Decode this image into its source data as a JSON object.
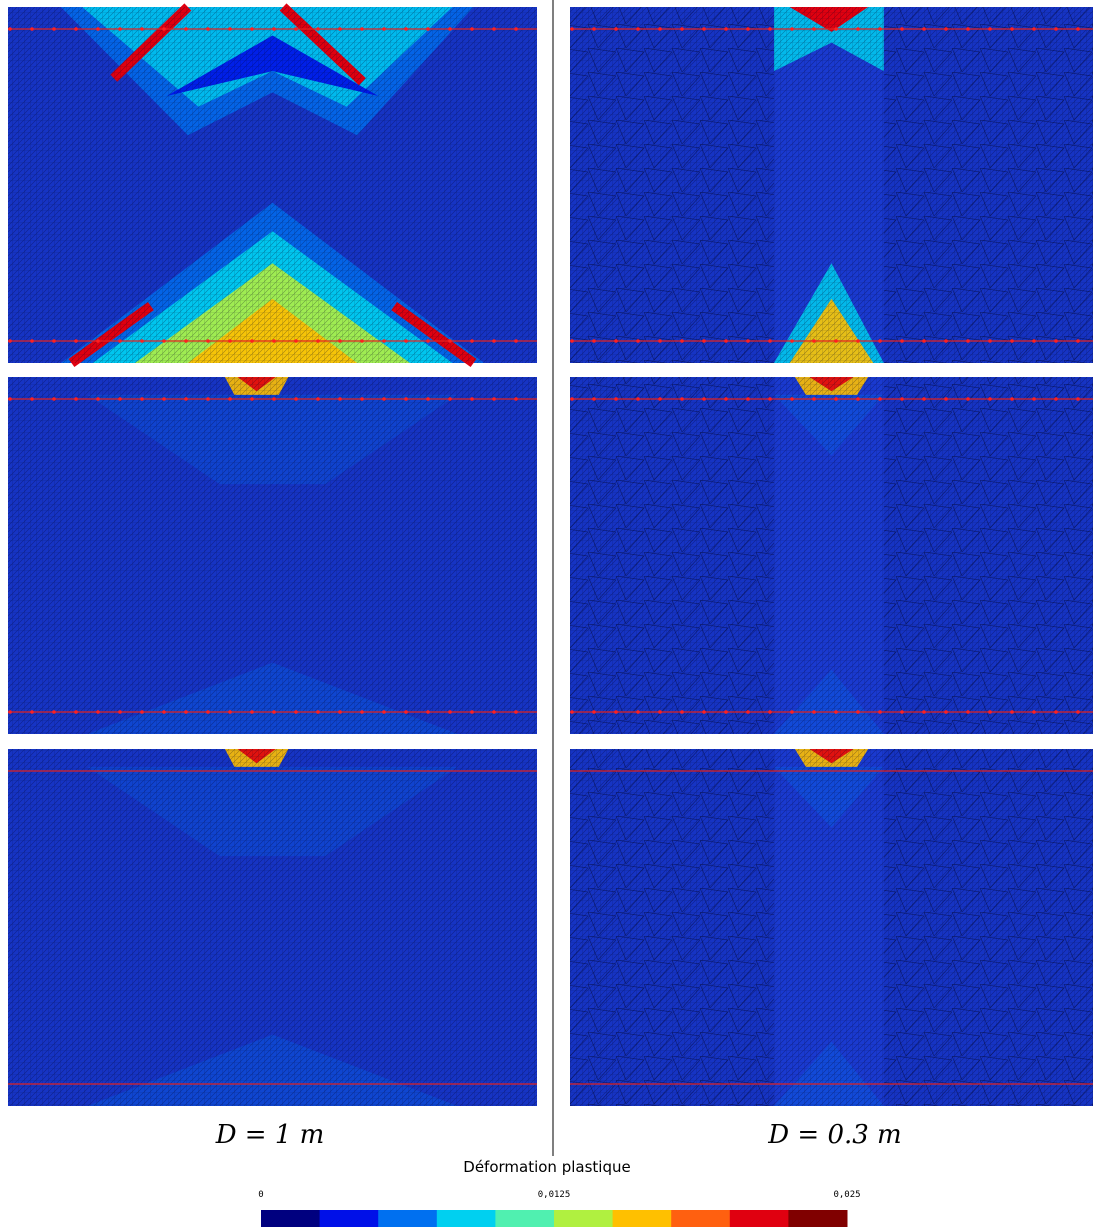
{
  "panels": {
    "left_label": "D = 1 m",
    "right_label": "D = 0.3 m"
  },
  "colorbar": {
    "title": "Déformation plastique",
    "ticks": [
      0,
      {
        "value": 0.0125,
        "label": "0,0125"
      },
      {
        "value": 0.025,
        "label": "0,025"
      }
    ],
    "colors": [
      "#00007f",
      "#0010e8",
      "#0070f0",
      "#00d0f0",
      "#50f0b0",
      "#b0f040",
      "#ffc000",
      "#ff6010",
      "#e00010",
      "#800000"
    ]
  }
}
